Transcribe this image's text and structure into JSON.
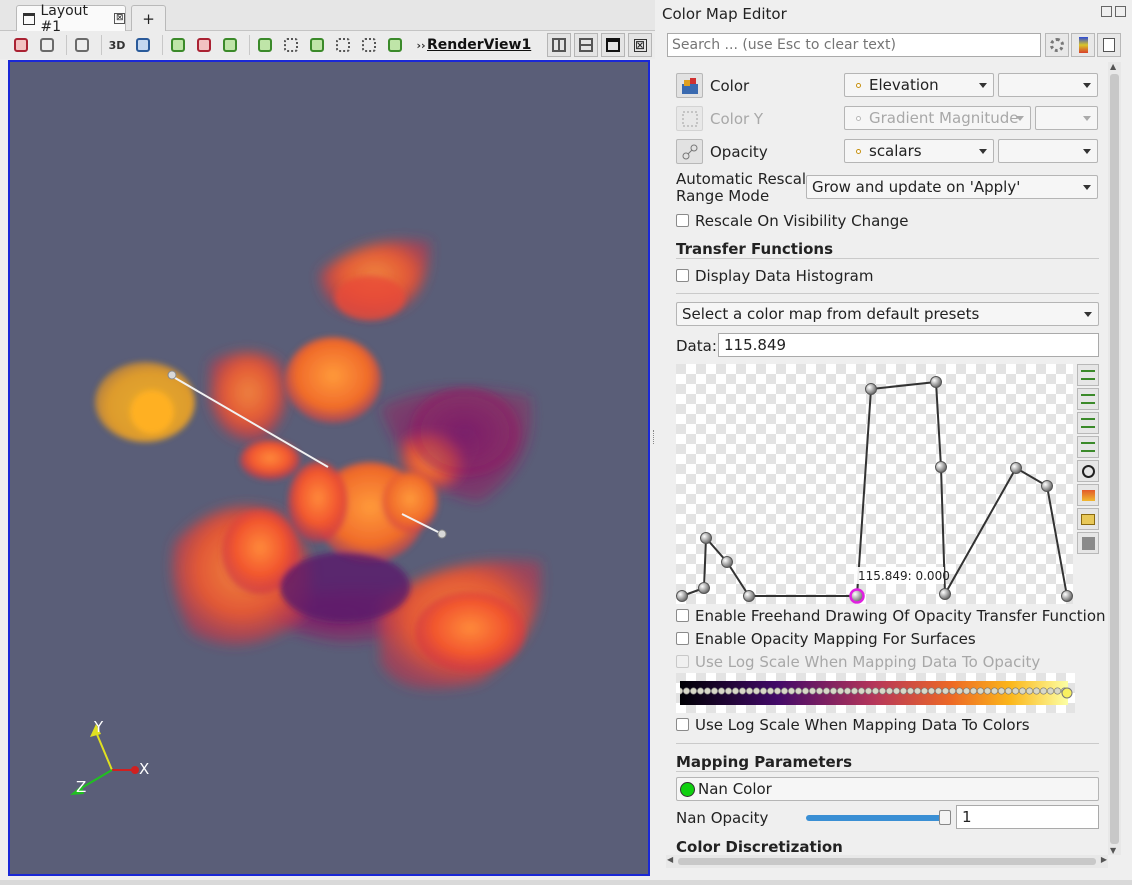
{
  "layout": {
    "tab_label": "Layout #1",
    "tab_close": "⊠",
    "add_tab": "+",
    "toolbar_3d": "3D",
    "overflow": "››",
    "render_view_label": "RenderView1",
    "close_view": "⊠"
  },
  "render": {
    "background": "#5a5e78",
    "axes": {
      "x": "X",
      "y": "Y",
      "z": "Z"
    }
  },
  "panel": {
    "title": "Color Map Editor",
    "search_placeholder": "Search ... (use Esc to clear text)",
    "color_label": "Color",
    "color_array": "Elevation",
    "color_y_label": "Color Y",
    "color_y_array": "Gradient Magnitude",
    "opacity_label": "Opacity",
    "opacity_array": "scalars",
    "rescale_label_1": "Automatic Rescale",
    "rescale_label_2": "Range Mode",
    "rescale_value": "Grow and update on 'Apply'",
    "rescale_visibility": "Rescale On Visibility Change",
    "transfer_functions": "Transfer Functions",
    "display_histogram": "Display Data Histogram",
    "preset_select": "Select a color map from default presets",
    "data_label": "Data:",
    "data_value": "115.849",
    "tf_tooltip": "115.849: 0.000",
    "freehand": "Enable Freehand Drawing Of Opacity Transfer Function",
    "opacity_surfaces": "Enable Opacity Mapping For Surfaces",
    "log_opacity": "Use Log Scale When Mapping Data To Opacity",
    "log_colors": "Use Log Scale When Mapping Data To Colors",
    "mapping_parameters": "Mapping Parameters",
    "nan_color": "Nan Color",
    "nan_color_swatch": "#10d010",
    "nan_opacity_label": "Nan Opacity",
    "nan_opacity_value": "1",
    "color_discretization": "Color Discretization"
  }
}
